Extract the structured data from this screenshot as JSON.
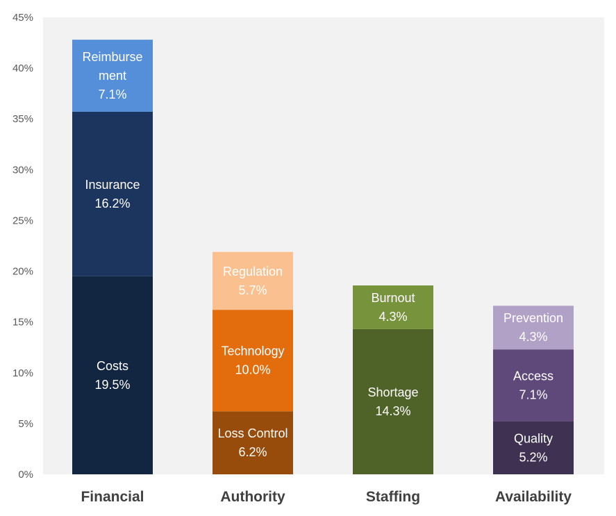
{
  "chart_data": {
    "type": "bar",
    "stacked": true,
    "ylim": [
      0,
      45
    ],
    "y_ticks": [
      0,
      5,
      10,
      15,
      20,
      25,
      30,
      35,
      40,
      45
    ],
    "y_tick_labels": [
      "0%",
      "5%",
      "10%",
      "15%",
      "20%",
      "25%",
      "30%",
      "35%",
      "40%",
      "45%"
    ],
    "categories": [
      "Financial",
      "Authority",
      "Staffing",
      "Availability"
    ],
    "stacks": [
      {
        "category": "Financial",
        "segments": [
          {
            "name": "Costs",
            "label_lines": [
              "Costs"
            ],
            "value": 19.5,
            "value_label": "19.5%",
            "color": "#132641"
          },
          {
            "name": "Insurance",
            "label_lines": [
              "Insurance"
            ],
            "value": 16.2,
            "value_label": "16.2%",
            "color": "#1c355e"
          },
          {
            "name": "Reimbursement",
            "label_lines": [
              "Reimburse",
              "ment"
            ],
            "value": 7.1,
            "value_label": "7.1%",
            "color": "#568fd9"
          }
        ]
      },
      {
        "category": "Authority",
        "segments": [
          {
            "name": "Loss Control",
            "label_lines": [
              "Loss Control"
            ],
            "value": 6.2,
            "value_label": "6.2%",
            "color": "#974c0b"
          },
          {
            "name": "Technology",
            "label_lines": [
              "Technology"
            ],
            "value": 10.0,
            "value_label": "10.0%",
            "color": "#e36c0d"
          },
          {
            "name": "Regulation",
            "label_lines": [
              "Regulation"
            ],
            "value": 5.7,
            "value_label": "5.7%",
            "color": "#fac08f"
          }
        ]
      },
      {
        "category": "Staffing",
        "segments": [
          {
            "name": "Shortage",
            "label_lines": [
              "Shortage"
            ],
            "value": 14.3,
            "value_label": "14.3%",
            "color": "#4f6228"
          },
          {
            "name": "Burnout",
            "label_lines": [
              "Burnout"
            ],
            "value": 4.3,
            "value_label": "4.3%",
            "color": "#77933c"
          }
        ]
      },
      {
        "category": "Availability",
        "segments": [
          {
            "name": "Quality",
            "label_lines": [
              "Quality"
            ],
            "value": 5.2,
            "value_label": "5.2%",
            "color": "#3f3151"
          },
          {
            "name": "Access",
            "label_lines": [
              "Access"
            ],
            "value": 7.1,
            "value_label": "7.1%",
            "color": "#5f497a"
          },
          {
            "name": "Prevention",
            "label_lines": [
              "Prevention"
            ],
            "value": 4.3,
            "value_label": "4.3%",
            "color": "#b2a1c7"
          }
        ]
      }
    ],
    "colors": {
      "plot_background": "#f2f2f2",
      "axis_text": "#595959",
      "category_text": "#404040",
      "segment_text": "#ffffff"
    }
  }
}
